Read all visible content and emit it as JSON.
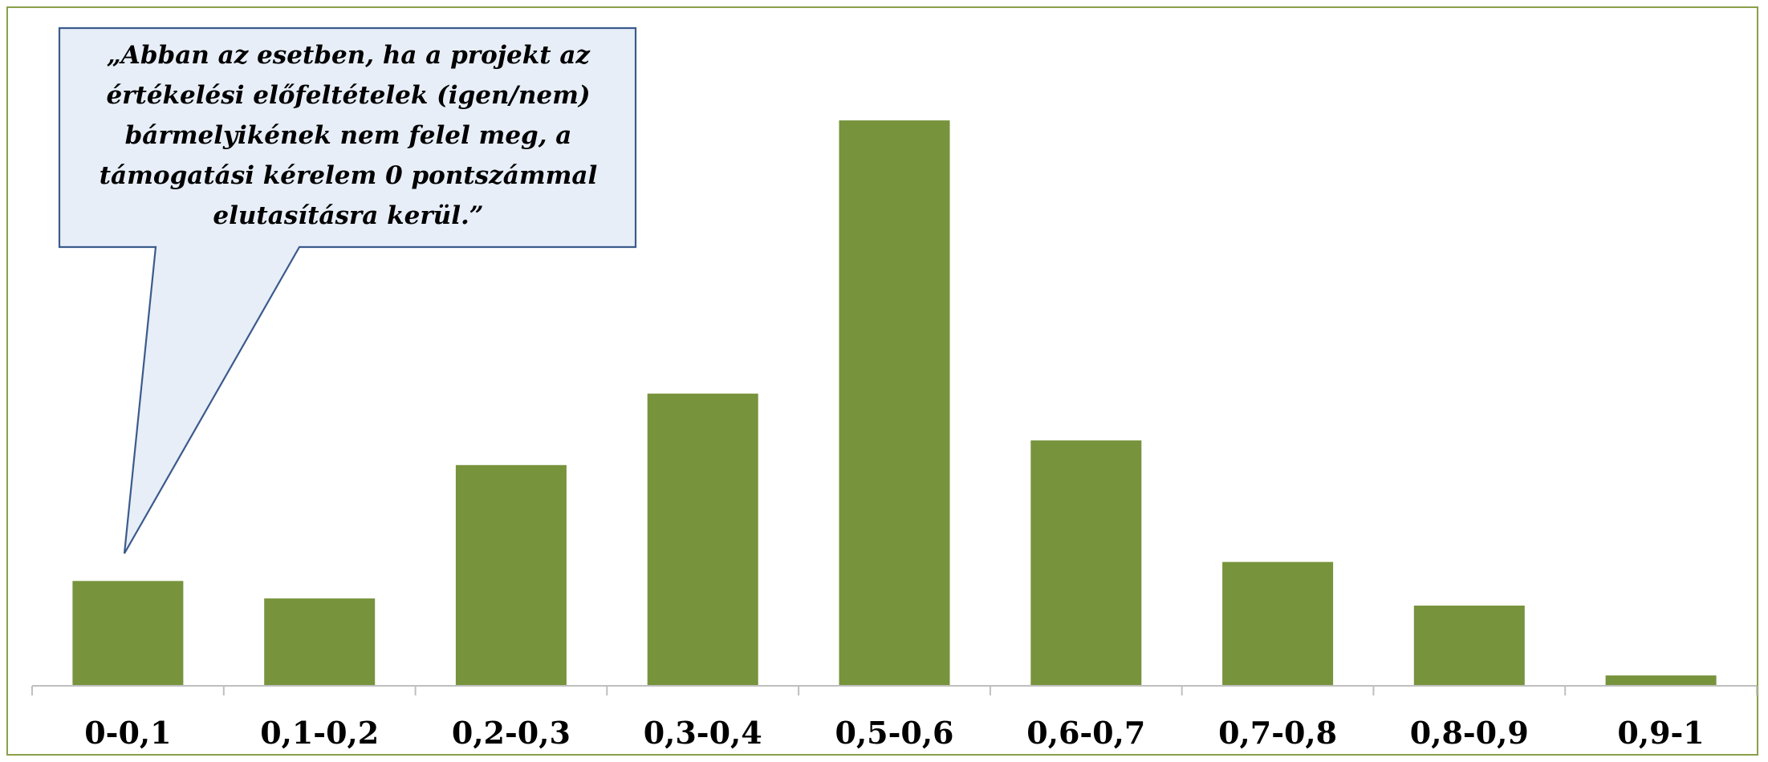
{
  "chart_data": {
    "type": "bar",
    "categories": [
      "0-0,1",
      "0,1-0,2",
      "0,2-0,3",
      "0,3-0,4",
      "0,5-0,6",
      "0,6-0,7",
      "0,7-0,8",
      "0,8-0,9",
      "0,9-1"
    ],
    "values": [
      13.2,
      11.0,
      27.8,
      36.8,
      71.2,
      30.9,
      15.6,
      10.1,
      1.3
    ],
    "ylim": [
      0,
      80
    ],
    "grid": false,
    "legend": "none",
    "bar_color": "#77933C",
    "annotation": {
      "target_category": "0-0,1",
      "lines": [
        "„Abban az esetben, ha a projekt az",
        "értékelési előfeltételek (igen/nem)",
        "bármelyikének nem felel meg, a",
        "támogatási kérelem 0 pontszámmal",
        "elutasításra kerül.”"
      ]
    }
  },
  "colors": {
    "border": "#8AA04A",
    "callout_fill": "#E7EEF7",
    "callout_stroke": "#3B5B8C",
    "axis": "#BFBFBF"
  }
}
